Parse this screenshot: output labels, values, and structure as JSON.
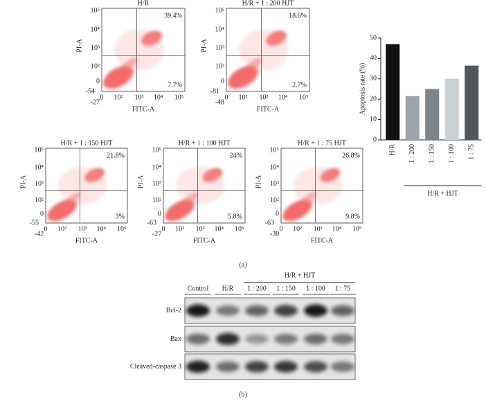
{
  "flow_plots": [
    {
      "title": "H/R",
      "upper_right": "39.4%",
      "lower_right": "7.7%",
      "x_label": "FITC-A",
      "y_label": "PI-A",
      "x_ticks": [
        "-27",
        "0",
        "10²",
        "10³",
        "10⁴",
        "10⁵"
      ],
      "y_ticks": [
        "10⁵",
        "10⁴",
        "10³",
        "10²",
        "0",
        "-54"
      ]
    },
    {
      "title": "H/R + 1 : 200 HJT",
      "upper_right": "18.6%",
      "lower_right": "2.7%",
      "x_label": "FITC-A",
      "y_label": "PI-A",
      "x_ticks": [
        "-48",
        "0",
        "10²",
        "10³",
        "10⁴",
        "10⁵"
      ],
      "y_ticks": [
        "10⁵",
        "10⁴",
        "10³",
        "10²",
        "0",
        "-81"
      ]
    },
    {
      "title": "H/R + 1 : 150 HJT",
      "upper_right": "21.8%",
      "lower_right": "3%",
      "x_label": "FITC-A",
      "y_label": "PI-A",
      "x_ticks": [
        "-42",
        "0",
        "10²",
        "10³",
        "10⁴",
        "10⁵"
      ],
      "y_ticks": [
        "10⁵",
        "10⁴",
        "10³",
        "10²",
        "0",
        "-55"
      ]
    },
    {
      "title": "H/R + 1 : 100 HJT",
      "upper_right": "24%",
      "lower_right": "5.8%",
      "x_label": "FITC-A",
      "y_label": "PI-A",
      "x_ticks": [
        "-27",
        "0",
        "10²",
        "10³",
        "10⁴",
        "10⁵"
      ],
      "y_ticks": [
        "10⁵",
        "10⁴",
        "10³",
        "10²",
        "0",
        "-63"
      ]
    },
    {
      "title": "H/R + 1 : 75 HJT",
      "upper_right": "26.8%",
      "lower_right": "9.8%",
      "x_label": "FITC-A",
      "y_label": "PI-A",
      "x_ticks": [
        "-30",
        "0",
        "10²",
        "10³",
        "10⁴",
        "10⁵"
      ],
      "y_ticks": [
        "10⁵",
        "10⁴",
        "10³",
        "10²",
        "0",
        "-63"
      ]
    }
  ],
  "chart_data": {
    "type": "bar",
    "ylabel": "Apoptosis rate (%)",
    "categories": [
      "H/R",
      "1 : 200",
      "1 : 150",
      "1 : 100",
      "1 : 75"
    ],
    "values": [
      47,
      21.5,
      25,
      30,
      36.5
    ],
    "colors": [
      "#111111",
      "#9ba4a9",
      "#7b8489",
      "#c9d0d3",
      "#50585c"
    ],
    "group_label": "H/R + HJT",
    "ylim": [
      0,
      50
    ],
    "yticks": [
      0,
      10,
      20,
      30,
      40,
      50
    ]
  },
  "western_blot": {
    "group_label": "H/R + HJT",
    "lanes": [
      "Control",
      "H/R",
      "1 : 200",
      "1 : 150",
      "1 : 100",
      "1 : 75"
    ],
    "rows": [
      "Bcl-2",
      "Bax",
      "Cleaved-caspase 3"
    ]
  },
  "captions": [
    "(a)",
    "(b)"
  ]
}
